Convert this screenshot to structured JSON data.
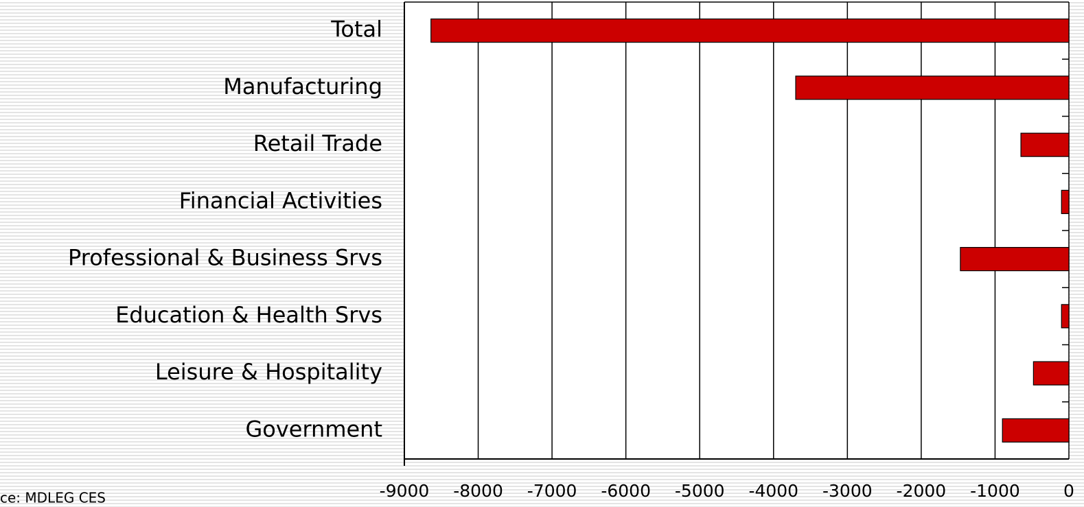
{
  "chart_data": {
    "type": "bar",
    "orientation": "horizontal",
    "categories": [
      "Total",
      "Manufacturing",
      "Retail Trade",
      "Financial Activities",
      "Professional & Business Srvs",
      "Education & Health Srvs",
      "Leisure & Hospitality",
      "Government"
    ],
    "values": [
      -8640,
      -3700,
      -650,
      -100,
      -1470,
      -100,
      -480,
      -900
    ],
    "color": "#cc0000",
    "xlim": [
      -9000,
      0
    ],
    "xticks": [
      -9000,
      -8000,
      -7000,
      -6000,
      -5000,
      -4000,
      -3000,
      -2000,
      -1000,
      0
    ],
    "grid": true,
    "source": "ce: MDLEG CES"
  }
}
